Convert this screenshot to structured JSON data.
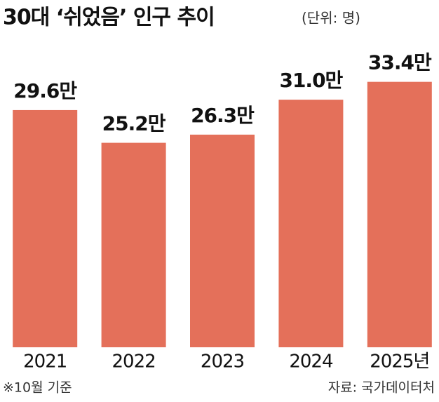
{
  "chart_data": {
    "type": "bar",
    "title": "30대 ‘쉬었음’ 인구 추이",
    "unit": "(단위: 명)",
    "categories": [
      "2021",
      "2022",
      "2023",
      "2024",
      "2025년"
    ],
    "values": [
      29.6,
      25.2,
      26.3,
      31.0,
      33.4
    ],
    "value_labels": [
      "29.6만",
      "25.2만",
      "26.3만",
      "31.0만",
      "33.4만"
    ],
    "color": "#e4705a",
    "ylim": [
      -2.3,
      34.5
    ],
    "note": "※10월 기준",
    "source": "자료: 국가데이터처"
  }
}
